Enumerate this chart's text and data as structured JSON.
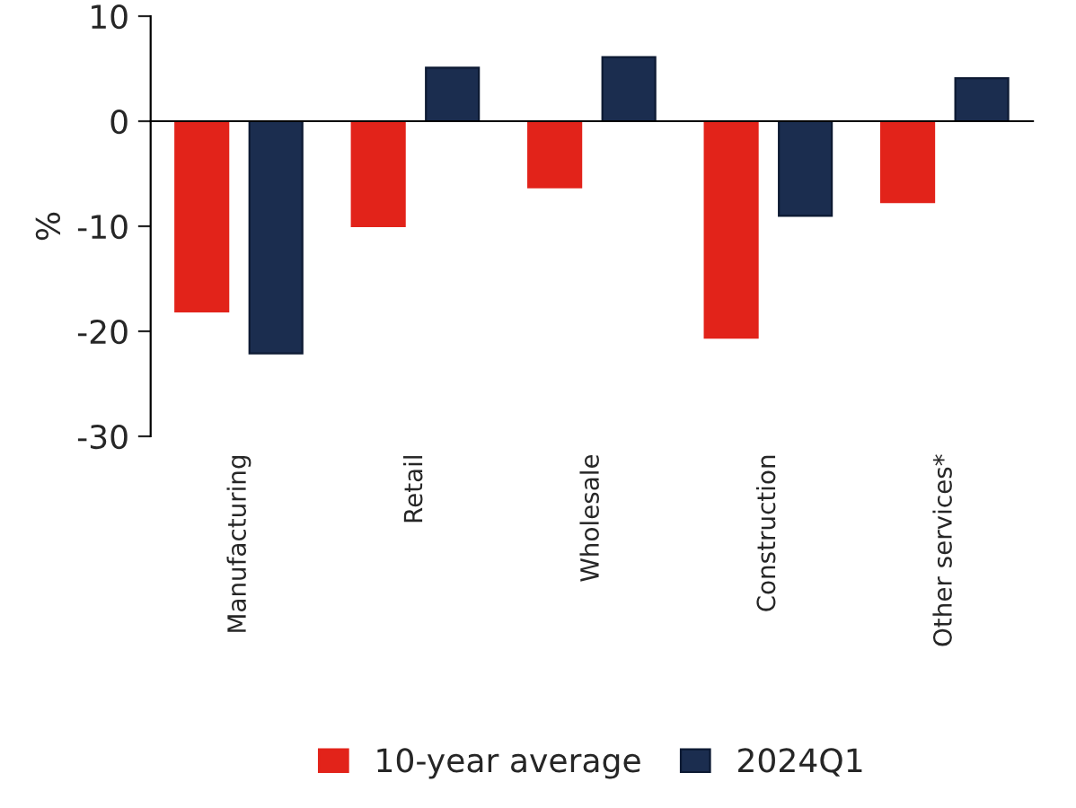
{
  "chart_data": {
    "type": "bar",
    "ylabel": "%",
    "categories": [
      "Manufacturing",
      "Retail",
      "Wholesale",
      "Construction",
      "Other services*"
    ],
    "series": [
      {
        "name": "10-year average",
        "color": "#e2231a",
        "values": [
          -18.1,
          -10.0,
          -6.3,
          -20.6,
          -7.7
        ]
      },
      {
        "name": "2024Q1",
        "color": "#1b2d4f",
        "values": [
          -22.1,
          5.1,
          6.1,
          -9.0,
          4.1
        ]
      }
    ],
    "ylim": [
      -30,
      10
    ],
    "yticks": [
      -30,
      -20,
      -10,
      0,
      10
    ],
    "legend": "bottom"
  }
}
